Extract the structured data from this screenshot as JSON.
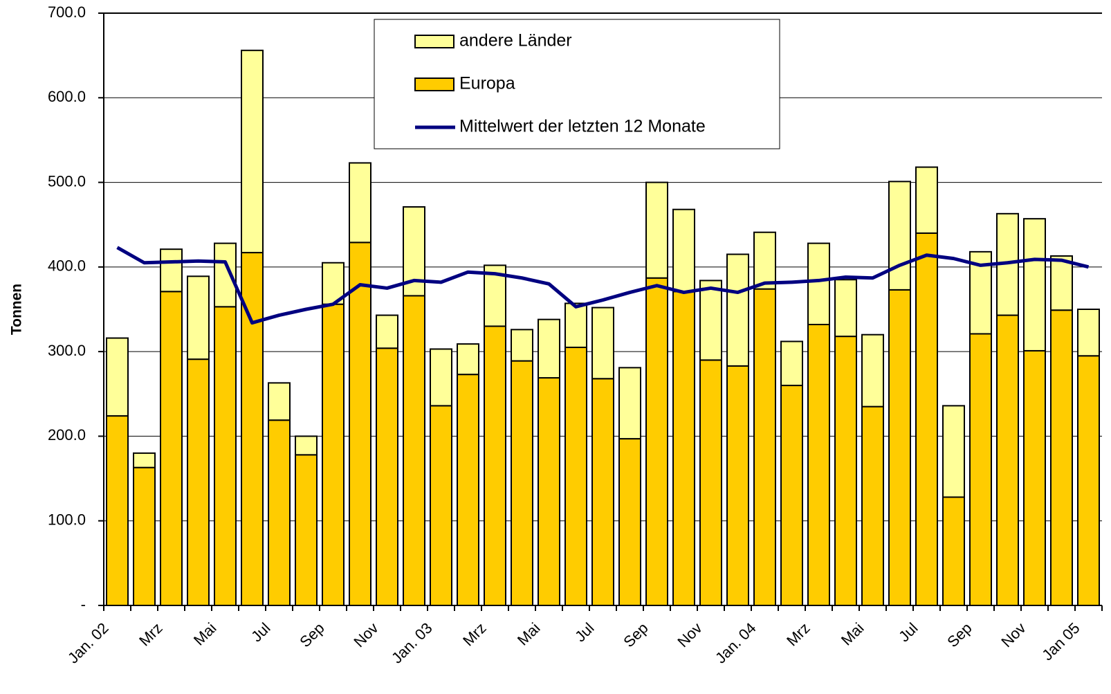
{
  "chart_data": {
    "type": "bar",
    "y_label": "Tonnen",
    "categories": [
      "Jan. 02",
      null,
      "Mrz",
      null,
      "Mai",
      null,
      "Jul",
      null,
      "Sep",
      null,
      "Nov",
      null,
      "Jan. 03",
      null,
      "Mrz",
      null,
      "Mai",
      null,
      "Jul",
      null,
      "Sep",
      null,
      "Nov",
      null,
      "Jan. 04",
      null,
      "Mrz",
      null,
      "Mai",
      null,
      "Jul",
      null,
      "Sep",
      null,
      "Nov",
      null,
      "Jan 05"
    ],
    "series": [
      {
        "name": "Europa",
        "color": "#FFCC00",
        "stacked": true,
        "values": [
          224,
          163,
          371,
          291,
          353,
          417,
          219,
          178,
          356,
          429,
          304,
          366,
          236,
          273,
          330,
          289,
          269,
          305,
          268,
          197,
          387,
          371,
          290,
          283,
          374,
          260,
          332,
          318,
          235,
          373,
          440,
          128,
          321,
          343,
          301,
          349,
          295
        ]
      },
      {
        "name": "andere Länder",
        "color": "#FFFF99",
        "stacked": true,
        "values": [
          92,
          17,
          50,
          98,
          75,
          239,
          44,
          22,
          49,
          94,
          39,
          105,
          67,
          36,
          72,
          37,
          69,
          52,
          84,
          84,
          113,
          97,
          94,
          132,
          67,
          52,
          96,
          67,
          85,
          128,
          78,
          108,
          97,
          120,
          156,
          64,
          55
        ]
      },
      {
        "name": "Mittelwert der letzten 12 Monate",
        "color": "#000080",
        "type": "line",
        "values": [
          423,
          405,
          406,
          407,
          406,
          334,
          343,
          350,
          356,
          379,
          375,
          384,
          382,
          394,
          392,
          387,
          380,
          353,
          361,
          370,
          378,
          370,
          375,
          370,
          381,
          382,
          384,
          388,
          387,
          402,
          414,
          410,
          402,
          405,
          409,
          408,
          400
        ]
      }
    ],
    "ylim": [
      0,
      700
    ],
    "yticks": [
      {
        "value": 0,
        "label": "-"
      },
      {
        "value": 100,
        "label": "100.0"
      },
      {
        "value": 200,
        "label": "200.0"
      },
      {
        "value": 300,
        "label": "300.0"
      },
      {
        "value": 400,
        "label": "400.0"
      },
      {
        "value": 500,
        "label": "500.0"
      },
      {
        "value": 600,
        "label": "600.0"
      },
      {
        "value": 700,
        "label": "700.0"
      }
    ],
    "grid": true,
    "legend": "top"
  }
}
